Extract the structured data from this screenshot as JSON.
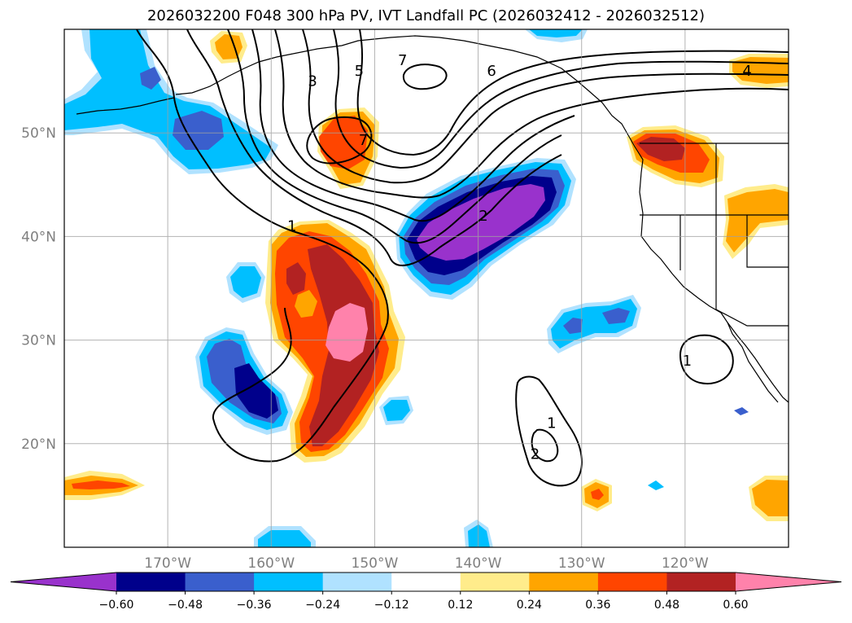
{
  "chart_data": {
    "type": "map-contour",
    "title": "2026032200 F048 300 hPa PV, IVT Landfall PC (2026032412 - 2026032512)",
    "lat_ticks": [
      {
        "value": 50,
        "label": "50°N"
      },
      {
        "value": 40,
        "label": "40°N"
      },
      {
        "value": 30,
        "label": "30°N"
      },
      {
        "value": 20,
        "label": "20°N"
      }
    ],
    "lon_ticks": [
      {
        "value": -170,
        "label": "170°W"
      },
      {
        "value": -160,
        "label": "160°W"
      },
      {
        "value": -150,
        "label": "150°W"
      },
      {
        "value": -140,
        "label": "140°W"
      },
      {
        "value": -130,
        "label": "130°W"
      },
      {
        "value": -120,
        "label": "120°W"
      }
    ],
    "extent": {
      "lon_min": -180,
      "lon_max": -110,
      "lat_min": 10,
      "lat_max": 60
    },
    "colorbar": {
      "levels": [
        "-0.60",
        "-0.48",
        "-0.36",
        "-0.24",
        "-0.12",
        "0.12",
        "0.24",
        "0.36",
        "0.48",
        "0.60"
      ],
      "colors": [
        "#9932cc",
        "#00008b",
        "#3a5fcd",
        "#00bfff",
        "#b0e2ff",
        "#ffffff",
        "#ffec8b",
        "#ffa500",
        "#ff4500",
        "#b22222",
        "#ff82ab"
      ]
    },
    "contour_labels": [
      {
        "text": "3",
        "lon": -156.0,
        "lat": 55.0
      },
      {
        "text": "5",
        "lon": -151.5,
        "lat": 56.0
      },
      {
        "text": "7",
        "lon": -147.3,
        "lat": 57.0
      },
      {
        "text": "6",
        "lon": -138.7,
        "lat": 56.0
      },
      {
        "text": "7",
        "lon": -151.1,
        "lat": 49.3
      },
      {
        "text": "4",
        "lon": -114.0,
        "lat": 56.0
      },
      {
        "text": "1",
        "lon": -158.0,
        "lat": 41.0
      },
      {
        "text": "2",
        "lon": -139.5,
        "lat": 42.0
      },
      {
        "text": "1",
        "lon": -132.9,
        "lat": 22.0
      },
      {
        "text": "2",
        "lon": -134.5,
        "lat": 19.0
      },
      {
        "text": "1",
        "lon": -119.8,
        "lat": 28.0
      }
    ]
  }
}
